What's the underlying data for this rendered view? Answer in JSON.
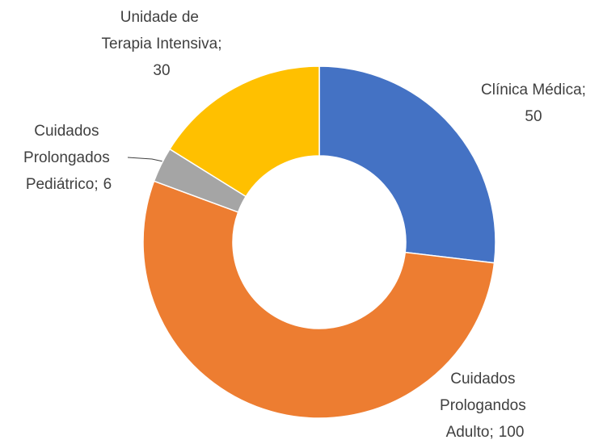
{
  "chart_data": {
    "type": "donut",
    "categories": [
      "Clínica Médica",
      "Cuidados Prologandos Adulto",
      "Cuidados Prolongados Pediátrico",
      "Unidade de Terapia Intensiva"
    ],
    "values": [
      50,
      100,
      6,
      30
    ],
    "colors": [
      "#4472c4",
      "#ed7d31",
      "#a5a5a5",
      "#ffc000"
    ],
    "label_separator": ";"
  }
}
